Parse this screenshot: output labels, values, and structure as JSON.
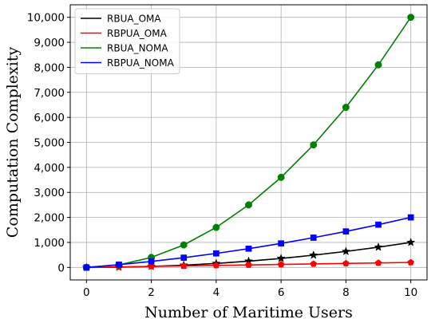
{
  "chart_data": {
    "type": "line",
    "title": "",
    "xlabel": "Number of Maritime Users",
    "ylabel": "Computation Complexity",
    "xlim": [
      -0.5,
      10.5
    ],
    "ylim": [
      -500,
      10500
    ],
    "x_ticks": [
      0,
      2,
      4,
      6,
      8,
      10
    ],
    "y_ticks": [
      0,
      1000,
      2000,
      3000,
      4000,
      5000,
      6000,
      7000,
      8000,
      9000,
      10000
    ],
    "x_tick_labels": [
      "0",
      "2",
      "4",
      "6",
      "8",
      "10"
    ],
    "y_tick_labels": [
      "0",
      "1,000",
      "2,000",
      "3,000",
      "4,000",
      "5,000",
      "6,000",
      "7,000",
      "8,000",
      "9,000",
      "10,000"
    ],
    "grid": true,
    "legend_position": "top-left",
    "x": [
      0,
      1,
      2,
      3,
      4,
      5,
      6,
      7,
      8,
      9,
      10
    ],
    "series": [
      {
        "name": "RBUA_OMA",
        "color": "#000000",
        "marker": "star",
        "values": [
          0,
          10,
          40,
          90,
          160,
          250,
          360,
          490,
          640,
          810,
          1000
        ]
      },
      {
        "name": "RBPUA_OMA",
        "color": "#ff0000",
        "marker": "pentagon",
        "values": [
          0,
          20,
          40,
          60,
          80,
          100,
          120,
          140,
          160,
          180,
          200
        ]
      },
      {
        "name": "RBUA_NOMA",
        "color": "#008000",
        "marker": "octagon",
        "values": [
          0,
          100,
          400,
          900,
          1600,
          2500,
          3600,
          4900,
          6400,
          8100,
          10000
        ]
      },
      {
        "name": "RBPUA_NOMA",
        "color": "#0000ff",
        "marker": "square",
        "values": [
          0,
          110,
          240,
          390,
          560,
          750,
          960,
          1190,
          1440,
          1710,
          2000
        ]
      }
    ]
  }
}
